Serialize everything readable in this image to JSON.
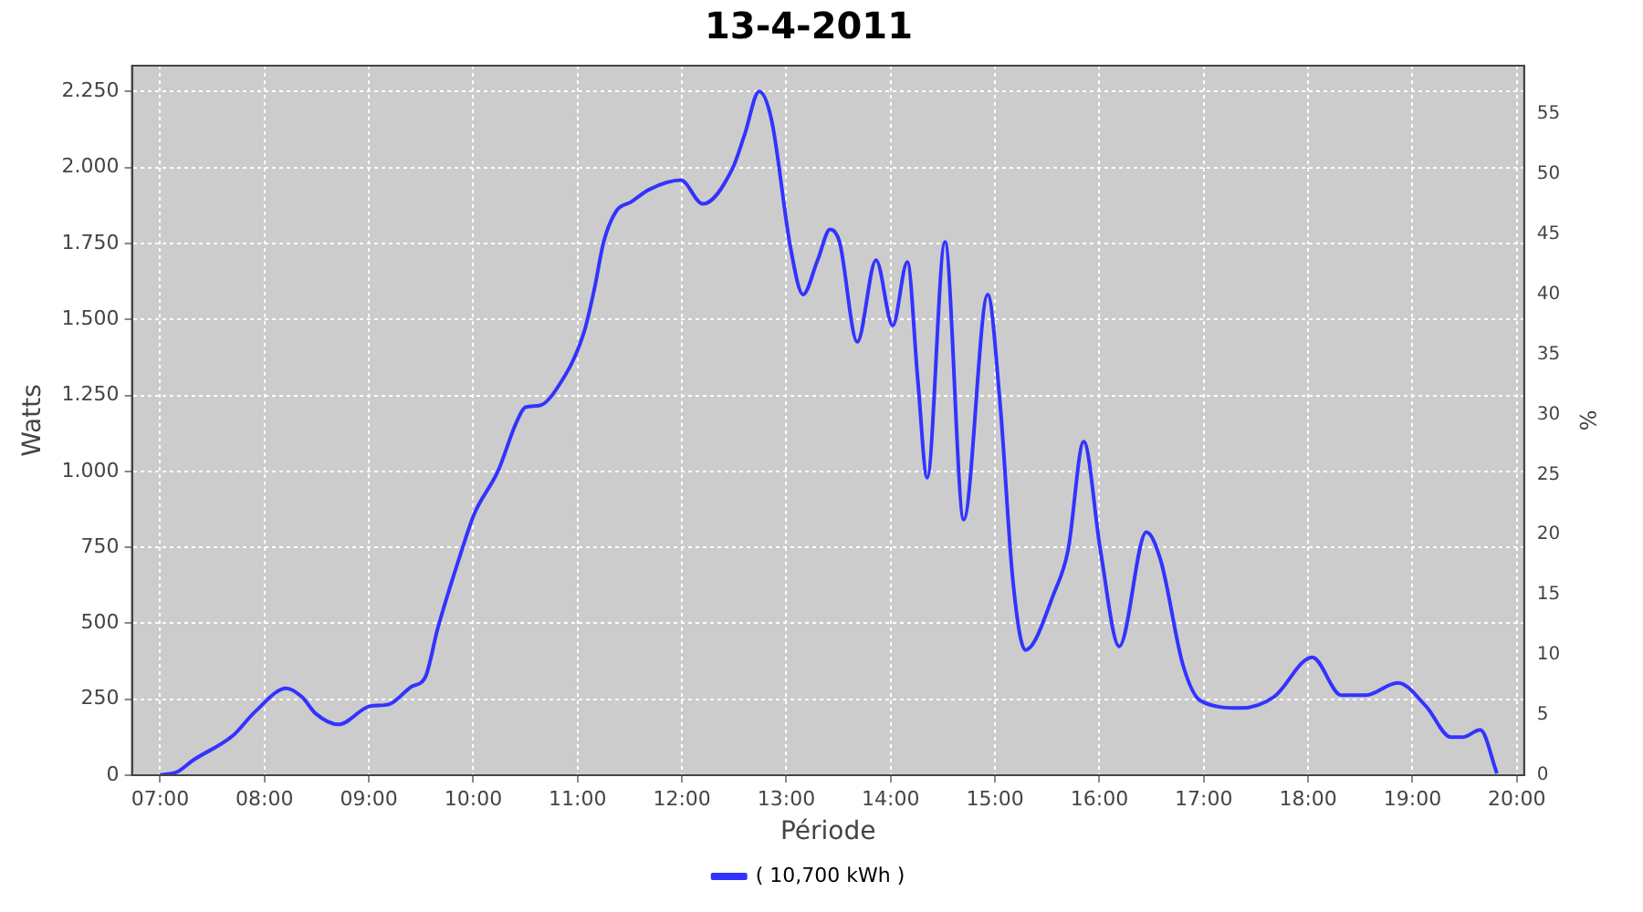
{
  "chart_data": {
    "type": "line",
    "title": "13-4-2011",
    "xlabel": "Période",
    "ylabel": "Watts",
    "y2label": "%",
    "x": [
      7.0,
      7.17,
      7.31,
      7.7,
      7.91,
      8.21,
      8.36,
      8.49,
      8.71,
      9.01,
      9.19,
      9.41,
      9.54,
      9.66,
      9.89,
      10.01,
      10.24,
      10.41,
      10.5,
      10.64,
      10.81,
      11.06,
      11.16,
      11.25,
      11.37,
      11.51,
      11.69,
      11.99,
      12.2,
      12.48,
      12.6,
      12.74,
      12.86,
      13.04,
      13.16,
      13.3,
      13.42,
      13.51,
      13.68,
      13.86,
      14.02,
      14.16,
      14.26,
      14.35,
      14.52,
      14.7,
      14.93,
      15.05,
      15.17,
      15.29,
      15.57,
      15.7,
      15.85,
      16.01,
      16.19,
      16.45,
      16.59,
      16.8,
      16.97,
      17.36,
      17.67,
      18.04,
      18.32,
      18.55,
      18.86,
      19.13,
      19.37,
      19.48,
      19.65,
      19.81
    ],
    "series": [
      {
        "name": "( 10,700 kWh )",
        "color": "#3333ff",
        "values": [
          0,
          12,
          48,
          131,
          209,
          286,
          257,
          203,
          167,
          227,
          233,
          292,
          322,
          483,
          740,
          860,
          1003,
          1158,
          1211,
          1217,
          1277,
          1456,
          1599,
          1755,
          1856,
          1886,
          1928,
          1958,
          1880,
          1993,
          2107,
          2250,
          2154,
          1737,
          1582,
          1695,
          1796,
          1755,
          1426,
          1695,
          1480,
          1689,
          1301,
          979,
          1755,
          841,
          1582,
          1217,
          645,
          412,
          603,
          740,
          1098,
          740,
          424,
          800,
          704,
          364,
          245,
          221,
          257,
          388,
          263,
          263,
          304,
          227,
          125,
          125,
          149,
          6
        ]
      }
    ],
    "xlim": [
      6.73,
      20.07
    ],
    "xticks": [
      {
        "value": 7,
        "label": "07:00"
      },
      {
        "value": 8,
        "label": "08:00"
      },
      {
        "value": 9,
        "label": "09:00"
      },
      {
        "value": 10,
        "label": "10:00"
      },
      {
        "value": 11,
        "label": "11:00"
      },
      {
        "value": 12,
        "label": "12:00"
      },
      {
        "value": 13,
        "label": "13:00"
      },
      {
        "value": 14,
        "label": "14:00"
      },
      {
        "value": 15,
        "label": "15:00"
      },
      {
        "value": 16,
        "label": "16:00"
      },
      {
        "value": 17,
        "label": "17:00"
      },
      {
        "value": 18,
        "label": "18:00"
      },
      {
        "value": 19,
        "label": "19:00"
      },
      {
        "value": 20,
        "label": "20:00"
      }
    ],
    "ylim": [
      0,
      2335
    ],
    "yticks": [
      0,
      250,
      500,
      750,
      {
        "value": 1000,
        "label": "1.000"
      },
      {
        "value": 1250,
        "label": "1.250"
      },
      {
        "value": 1500,
        "label": "1.500"
      },
      {
        "value": 1750,
        "label": "1.750"
      },
      {
        "value": 2000,
        "label": "2.000"
      },
      {
        "value": 2250,
        "label": "2.250"
      }
    ],
    "y2lim": [
      0,
      59
    ],
    "y2ticks": [
      0,
      5,
      10,
      15,
      20,
      25,
      30,
      35,
      40,
      45,
      50,
      55
    ],
    "grid": true,
    "legend": "bottom",
    "marker": "none",
    "line_style": "solid"
  }
}
